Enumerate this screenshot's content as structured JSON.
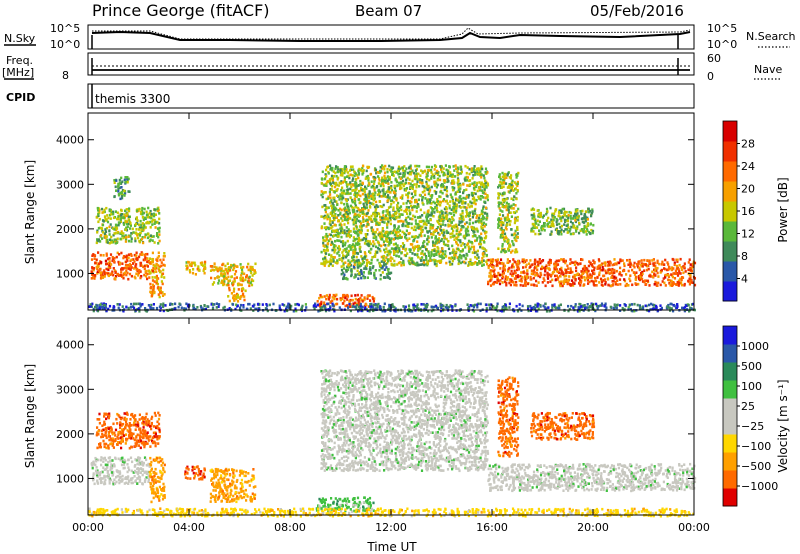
{
  "header": {
    "station": "Prince George (fitACF)",
    "beam": "Beam 07",
    "date": "05/Feb/2016"
  },
  "noise_panel": {
    "left_label": "N.Sky",
    "left_ticks": [
      "10^5",
      "10^0"
    ],
    "right_ticks": [
      "10^5",
      "10^0"
    ],
    "right_label": "N.Search"
  },
  "freq_panel": {
    "left_label_top": "Freq.",
    "left_label_unit": "[MHz]",
    "left_tick": "8",
    "right_ticks": [
      "60",
      "0"
    ],
    "right_label": "Nave"
  },
  "cpid_panel": {
    "label": "CPID",
    "program": "themis 3300"
  },
  "colors": {
    "power": [
      "#1a1adc",
      "#2a58a8",
      "#3f8a5a",
      "#5ab83a",
      "#c8c800",
      "#f7a000",
      "#ff6a00",
      "#f03000",
      "#d80000"
    ],
    "velocity": [
      "#e00000",
      "#ff6a00",
      "#ffa000",
      "#ffd700",
      "#c8c8c0",
      "#c8c8c0",
      "#40c040",
      "#2a8a5a",
      "#2a58a8",
      "#1a1adc"
    ]
  },
  "chart_data": [
    {
      "type": "heatmap",
      "name": "power",
      "xlabel": "",
      "ylabel": "Slant Range [km]",
      "xlim": [
        0,
        24
      ],
      "ylim": [
        180,
        4600
      ],
      "yticks": [
        "1000",
        "2000",
        "3000",
        "4000"
      ],
      "colorbar": {
        "label": "Power [dB]",
        "ticks": [
          "4",
          "8",
          "12",
          "16",
          "20",
          "24",
          "28"
        ],
        "range": [
          0,
          32
        ]
      },
      "bands": [
        {
          "t0": 0.1,
          "t1": 2.4,
          "r0": 900,
          "r1": 1500,
          "level": 24
        },
        {
          "t0": 0.3,
          "t1": 2.8,
          "r0": 1700,
          "r1": 2500,
          "level": 14
        },
        {
          "t0": 1.0,
          "t1": 1.6,
          "r0": 2700,
          "r1": 3200,
          "level": 10
        },
        {
          "t0": 2.4,
          "t1": 3.0,
          "r0": 500,
          "r1": 1500,
          "level": 20
        },
        {
          "t0": 3.8,
          "t1": 4.6,
          "r0": 1000,
          "r1": 1300,
          "level": 18
        },
        {
          "t0": 4.8,
          "t1": 6.6,
          "r0": 750,
          "r1": 1250,
          "level": 18
        },
        {
          "t0": 5.5,
          "t1": 6.2,
          "r0": 400,
          "r1": 700,
          "level": 20
        },
        {
          "t0": 9.0,
          "t1": 11.3,
          "r0": 280,
          "r1": 550,
          "level": 24
        },
        {
          "t0": 10.0,
          "t1": 12.0,
          "r0": 900,
          "r1": 1200,
          "level": 10
        },
        {
          "t0": 9.2,
          "t1": 15.8,
          "r0": 1200,
          "r1": 3450,
          "level": 14
        },
        {
          "t0": 15.8,
          "t1": 24.0,
          "r0": 750,
          "r1": 1350,
          "level": 24
        },
        {
          "t0": 16.2,
          "t1": 17.0,
          "r0": 1500,
          "r1": 3300,
          "level": 14
        },
        {
          "t0": 17.5,
          "t1": 20.0,
          "r0": 1900,
          "r1": 2500,
          "level": 13
        },
        {
          "t0": 0.0,
          "t1": 24.0,
          "r0": 180,
          "r1": 350,
          "level": 6
        }
      ]
    },
    {
      "type": "heatmap",
      "name": "velocity",
      "xlabel": "Time UT",
      "ylabel": "Slant Range [km]",
      "xlim": [
        0,
        24
      ],
      "ylim": [
        180,
        4600
      ],
      "yticks": [
        "1000",
        "2000",
        "3000",
        "4000"
      ],
      "xticks": [
        "00:00",
        "04:00",
        "08:00",
        "12:00",
        "16:00",
        "20:00",
        "00:00"
      ],
      "colorbar": {
        "label": "Velocity [m s⁻¹]",
        "ticks": [
          "1000",
          "500",
          "100",
          "25",
          "−25",
          "−100",
          "−500",
          "−1000"
        ]
      },
      "bands": [
        {
          "t0": 0.1,
          "t1": 2.4,
          "r0": 900,
          "r1": 1500,
          "level": 5
        },
        {
          "t0": 0.3,
          "t1": 2.8,
          "r0": 1700,
          "r1": 2500,
          "level": 1
        },
        {
          "t0": 2.4,
          "t1": 3.0,
          "r0": 500,
          "r1": 1500,
          "level": 2
        },
        {
          "t0": 3.8,
          "t1": 4.6,
          "r0": 1000,
          "r1": 1300,
          "level": 1
        },
        {
          "t0": 4.8,
          "t1": 6.6,
          "r0": 500,
          "r1": 1250,
          "level": 2
        },
        {
          "t0": 9.0,
          "t1": 11.3,
          "r0": 280,
          "r1": 600,
          "level": 6
        },
        {
          "t0": 9.2,
          "t1": 15.8,
          "r0": 1200,
          "r1": 3450,
          "level": 5
        },
        {
          "t0": 15.8,
          "t1": 24.0,
          "r0": 750,
          "r1": 1350,
          "level": 5
        },
        {
          "t0": 16.2,
          "t1": 17.0,
          "r0": 1500,
          "r1": 3300,
          "level": 1
        },
        {
          "t0": 17.5,
          "t1": 20.0,
          "r0": 1900,
          "r1": 2500,
          "level": 1
        },
        {
          "t0": 0.0,
          "t1": 24.0,
          "r0": 180,
          "r1": 350,
          "level": 3
        }
      ]
    }
  ]
}
